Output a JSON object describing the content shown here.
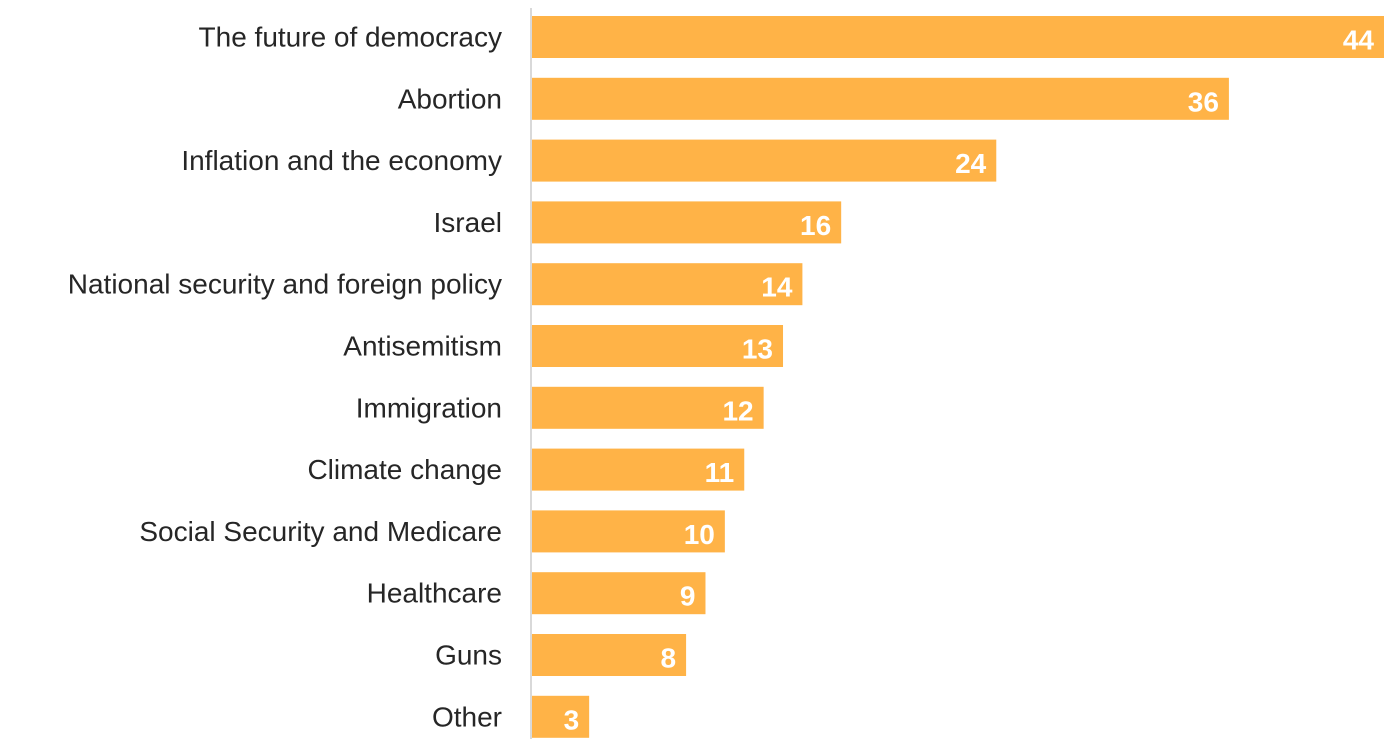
{
  "chart_data": {
    "type": "bar",
    "orientation": "horizontal",
    "categories": [
      "The future of democracy",
      "Abortion",
      "Inflation and the economy",
      "Israel",
      "National security and foreign policy",
      "Antisemitism",
      "Immigration",
      "Climate change",
      "Social Security and Medicare",
      "Healthcare",
      "Guns",
      "Other"
    ],
    "values": [
      44,
      36,
      24,
      16,
      14,
      13,
      12,
      11,
      10,
      9,
      8,
      3
    ],
    "data_labels": [
      "44",
      "36",
      "24",
      "16",
      "14",
      "13",
      "12",
      "11",
      "10",
      "9",
      "8",
      "3"
    ],
    "title": "",
    "xlabel": "",
    "ylabel": "",
    "xlim": [
      0,
      44
    ],
    "grid": false,
    "legend": "none",
    "colors": {
      "bar": "#FFB347",
      "axis_line": "#D9D9D9",
      "category_text": "#262626",
      "value_text": "#FFFFFF"
    }
  }
}
